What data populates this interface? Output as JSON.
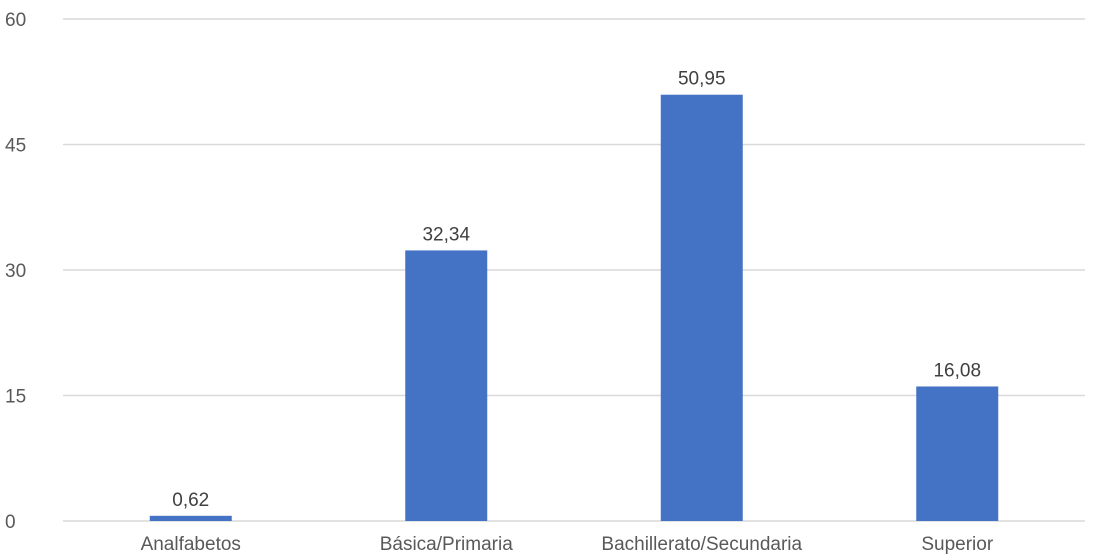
{
  "chart_data": {
    "type": "bar",
    "title": "",
    "xlabel": "",
    "ylabel": "",
    "categories": [
      "Analfabetos",
      "Básica/Primaria",
      "Bachillerato/Secundaria",
      "Superior"
    ],
    "values": [
      0.62,
      32.34,
      50.95,
      16.08
    ],
    "data_labels": [
      "0,62",
      "32,34",
      "50,95",
      "16,08"
    ],
    "ylim": [
      0,
      60
    ],
    "yticks": [
      0,
      15,
      30,
      45,
      60
    ],
    "ytick_labels": [
      "0",
      "15",
      "30",
      "45",
      "60"
    ],
    "grid": true,
    "legend": "none",
    "bar_color": "#4472c4",
    "grid_color": "#d9d9d9"
  }
}
